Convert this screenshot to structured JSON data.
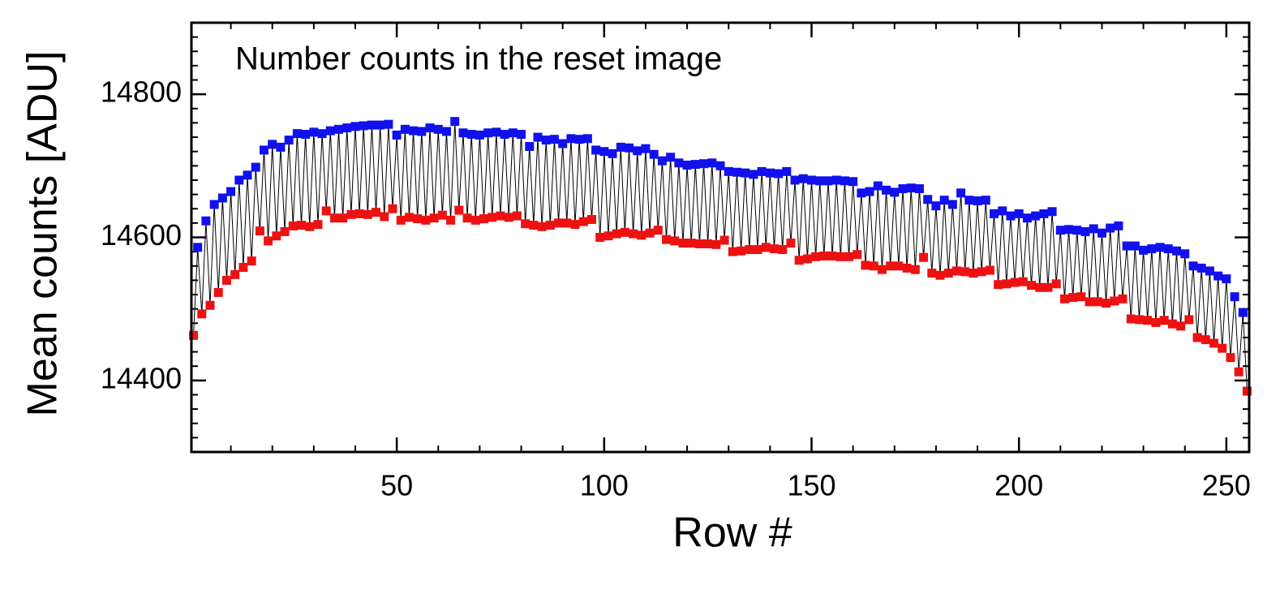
{
  "chart_data": {
    "type": "scatter",
    "annotation": "Number counts in the reset image",
    "x_label": "Row #",
    "y_label": "Mean counts [ADU]",
    "xlim": [
      0.5,
      255.5
    ],
    "ylim": [
      14300,
      14900
    ],
    "xticks": [
      50,
      100,
      150,
      200,
      250
    ],
    "yticks": [
      14400,
      14600,
      14800
    ],
    "minor_tick_step": {
      "x": 10,
      "y": 20
    },
    "line_color": "#000000",
    "series": [
      {
        "color": "#ee1111",
        "x": [
          1,
          3,
          5,
          7,
          9,
          11,
          13,
          15,
          17,
          19,
          21,
          23,
          25,
          27,
          29,
          31,
          33,
          35,
          37,
          39,
          41,
          43,
          45,
          47,
          49,
          51,
          53,
          55,
          57,
          59,
          61,
          63,
          65,
          67,
          69,
          71,
          73,
          75,
          77,
          79,
          81,
          83,
          85,
          87,
          89,
          91,
          93,
          95,
          97,
          99,
          101,
          103,
          105,
          107,
          109,
          111,
          113,
          115,
          117,
          119,
          121,
          123,
          125,
          127,
          129,
          131,
          133,
          135,
          137,
          139,
          141,
          143,
          145,
          147,
          149,
          151,
          153,
          155,
          157,
          159,
          161,
          163,
          165,
          167,
          169,
          171,
          173,
          175,
          177,
          179,
          181,
          183,
          185,
          187,
          189,
          191,
          193,
          195,
          197,
          199,
          201,
          203,
          205,
          207,
          209,
          211,
          213,
          215,
          217,
          219,
          221,
          223,
          225,
          227,
          229,
          231,
          233,
          235,
          237,
          239,
          241,
          243,
          245,
          247,
          249,
          251,
          253,
          255
        ],
        "values": [
          14463,
          14493,
          14505,
          14523,
          14540,
          14548,
          14558,
          14567,
          14609,
          14595,
          14602,
          14608,
          14616,
          14617,
          14615,
          14618,
          14637,
          14627,
          14627,
          14632,
          14633,
          14632,
          14635,
          14629,
          14640,
          14624,
          14628,
          14626,
          14624,
          14627,
          14631,
          14624,
          14638,
          14627,
          14624,
          14626,
          14628,
          14630,
          14628,
          14630,
          14619,
          14617,
          14615,
          14617,
          14620,
          14620,
          14618,
          14622,
          14625,
          14600,
          14602,
          14605,
          14607,
          14605,
          14603,
          14606,
          14610,
          14597,
          14595,
          14592,
          14592,
          14591,
          14591,
          14590,
          14596,
          14580,
          14581,
          14583,
          14583,
          14586,
          14584,
          14583,
          14592,
          14568,
          14570,
          14573,
          14574,
          14574,
          14573,
          14573,
          14576,
          14561,
          14560,
          14555,
          14560,
          14560,
          14557,
          14555,
          14572,
          14550,
          14547,
          14550,
          14553,
          14552,
          14550,
          14552,
          14554,
          14534,
          14535,
          14537,
          14538,
          14533,
          14530,
          14530,
          14535,
          14514,
          14516,
          14517,
          14510,
          14510,
          14508,
          14511,
          14514,
          14486,
          14485,
          14484,
          14481,
          14484,
          14479,
          14476,
          14485,
          14460,
          14457,
          14452,
          14445,
          14432,
          14412,
          14385
        ]
      },
      {
        "color": "#1111ee",
        "x": [
          2,
          4,
          6,
          8,
          10,
          12,
          14,
          16,
          18,
          20,
          22,
          24,
          26,
          28,
          30,
          32,
          34,
          36,
          38,
          40,
          42,
          44,
          46,
          48,
          50,
          52,
          54,
          56,
          58,
          60,
          62,
          64,
          66,
          68,
          70,
          72,
          74,
          76,
          78,
          80,
          82,
          84,
          86,
          88,
          90,
          92,
          94,
          96,
          98,
          100,
          102,
          104,
          106,
          108,
          110,
          112,
          114,
          116,
          118,
          120,
          122,
          124,
          126,
          128,
          130,
          132,
          134,
          136,
          138,
          140,
          142,
          144,
          146,
          148,
          150,
          152,
          154,
          156,
          158,
          160,
          162,
          164,
          166,
          168,
          170,
          172,
          174,
          176,
          178,
          180,
          182,
          184,
          186,
          188,
          190,
          192,
          194,
          196,
          198,
          200,
          202,
          204,
          206,
          208,
          210,
          212,
          214,
          216,
          218,
          220,
          222,
          224,
          226,
          228,
          230,
          232,
          234,
          236,
          238,
          240,
          242,
          244,
          246,
          248,
          250,
          252,
          254
        ],
        "values": [
          14586,
          14623,
          14646,
          14655,
          14664,
          14680,
          14687,
          14698,
          14722,
          14730,
          14726,
          14736,
          14745,
          14744,
          14747,
          14745,
          14749,
          14751,
          14753,
          14755,
          14756,
          14757,
          14757,
          14758,
          14743,
          14751,
          14749,
          14748,
          14753,
          14751,
          14748,
          14762,
          14746,
          14744,
          14743,
          14746,
          14747,
          14744,
          14746,
          14744,
          14727,
          14740,
          14736,
          14737,
          14731,
          14738,
          14737,
          14738,
          14722,
          14720,
          14717,
          14726,
          14725,
          14721,
          14724,
          14716,
          14707,
          14712,
          14704,
          14701,
          14702,
          14703,
          14704,
          14700,
          14692,
          14691,
          14690,
          14688,
          14692,
          14690,
          14689,
          14692,
          14680,
          14682,
          14680,
          14679,
          14679,
          14680,
          14679,
          14678,
          14662,
          14664,
          14672,
          14666,
          14663,
          14668,
          14669,
          14668,
          14653,
          14644,
          14652,
          14646,
          14662,
          14652,
          14651,
          14652,
          14633,
          14637,
          14630,
          14633,
          14627,
          14630,
          14633,
          14636,
          14610,
          14611,
          14610,
          14608,
          14612,
          14606,
          14613,
          14616,
          14588,
          14588,
          14582,
          14584,
          14586,
          14584,
          14581,
          14577,
          14560,
          14557,
          14553,
          14546,
          14542,
          14517,
          14495
        ]
      }
    ]
  }
}
